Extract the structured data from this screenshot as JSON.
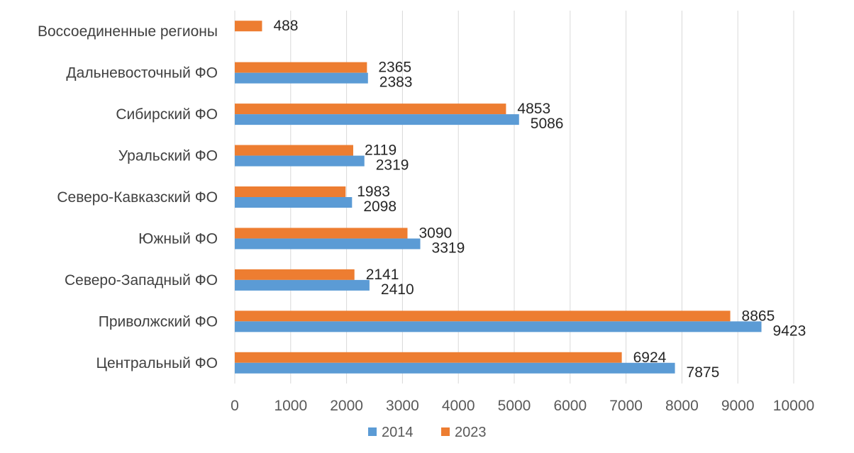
{
  "chart_data": {
    "type": "bar",
    "orientation": "horizontal",
    "title": "",
    "xlabel": "",
    "ylabel": "",
    "categories": [
      "Воссоединенные регионы",
      "Дальневосточный ФО",
      "Сибирский ФО",
      "Уральский ФО",
      "Северо-Кавказский ФО",
      "Южный ФО",
      "Северо-Западный ФО",
      "Приволжский ФО",
      "Центральный ФО"
    ],
    "series": [
      {
        "name": "2014",
        "color": "#5b9bd5",
        "values": [
          null,
          2383,
          5086,
          2319,
          2098,
          3319,
          2410,
          9423,
          7875
        ]
      },
      {
        "name": "2023",
        "color": "#ed7d31",
        "values": [
          488,
          2365,
          4853,
          2119,
          1983,
          3090,
          2141,
          8865,
          6924
        ]
      }
    ],
    "xlim": [
      0,
      10000
    ],
    "ticks": [
      "0",
      "1000",
      "2000",
      "3000",
      "4000",
      "5000",
      "6000",
      "7000",
      "8000",
      "9000",
      "10000"
    ],
    "grid": true,
    "legend": {
      "position": "bottom",
      "entries": [
        "2014",
        "2023"
      ]
    },
    "data_labels": true
  }
}
